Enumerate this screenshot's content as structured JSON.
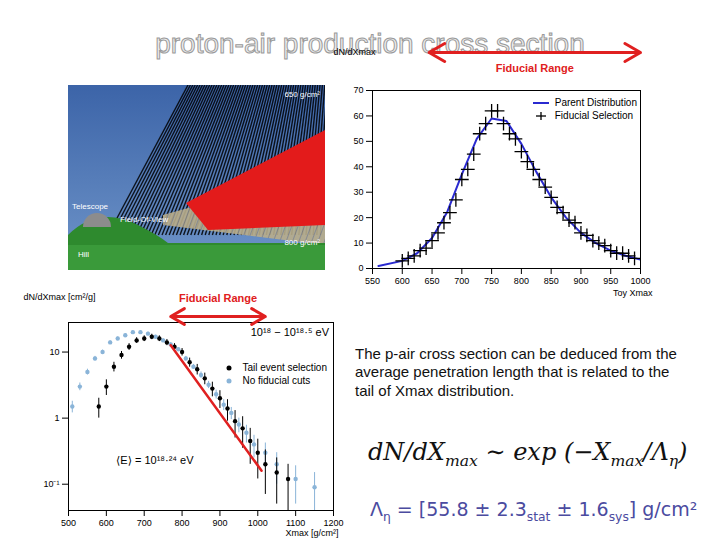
{
  "slide_title": "proton-air production cross section",
  "diagram": {
    "labels": {
      "telescope": "Telescope",
      "field_of_view": "Field-Of-View",
      "hill": "Hill",
      "top_depth": "650 g/cm²",
      "bottom_depth": "800 g/cm²"
    }
  },
  "chart_data": [
    {
      "type": "line",
      "xlabel": "Toy Xmax",
      "ylabel": "dN/dXmax",
      "xlim": [
        550,
        1000
      ],
      "xticks": [
        550,
        600,
        650,
        700,
        750,
        800,
        850,
        900,
        950,
        1000
      ],
      "ylim": [
        0,
        70
      ],
      "yticks": [
        0,
        10,
        20,
        30,
        40,
        50,
        60,
        70
      ],
      "grid": false,
      "legend": "top-right",
      "fiducial_range": {
        "text": "Fiducial Range",
        "x": [
          645,
          1000
        ],
        "color": "#e02020"
      },
      "series": [
        {
          "name": "Parent Distribution",
          "type": "line",
          "color": "#2a2ad0",
          "x": [
            560,
            600,
            625,
            650,
            675,
            700,
            725,
            750,
            775,
            800,
            825,
            850,
            875,
            900,
            925,
            950,
            975,
            1000
          ],
          "values": [
            1,
            3,
            6,
            12,
            22,
            37,
            51,
            59,
            58,
            49,
            38,
            28,
            20,
            14,
            10,
            7,
            5,
            3.5
          ]
        },
        {
          "name": "Fiducial Selection",
          "type": "scatter",
          "marker": "plus",
          "color": "#000000",
          "x": [
            600,
            610,
            620,
            630,
            640,
            650,
            660,
            670,
            680,
            690,
            700,
            710,
            720,
            730,
            740,
            750,
            760,
            770,
            780,
            790,
            800,
            810,
            820,
            830,
            840,
            850,
            860,
            870,
            880,
            890,
            900,
            910,
            920,
            930,
            940,
            950,
            960,
            970,
            980,
            990
          ],
          "values": [
            3,
            4,
            5,
            7,
            8,
            11,
            14,
            18,
            22,
            27,
            35,
            39,
            45,
            53,
            57,
            62,
            62,
            57,
            53,
            51,
            46,
            42,
            39,
            35,
            32,
            28,
            24,
            22,
            19,
            18,
            14,
            13,
            11,
            10,
            9,
            7,
            6,
            6,
            5,
            4
          ]
        }
      ]
    },
    {
      "type": "scatter",
      "xlabel": "Xmax [g/cm²]",
      "ylabel": "dN/dXmax [cm²/g]",
      "log": "y",
      "xlim": [
        500,
        1200
      ],
      "xticks": [
        500,
        600,
        700,
        800,
        900,
        1000,
        1100,
        1200
      ],
      "ylim": [
        0.04,
        28
      ],
      "yticks": [
        {
          "value": 0.1,
          "label": "10⁻¹"
        },
        1,
        10
      ],
      "grid": false,
      "legend": "top-right",
      "annotations": [
        "10¹⁸ − 10¹⁸·⁵ eV",
        "⟨E⟩ = 10¹⁸·²⁴ eV"
      ],
      "fiducial_range": {
        "text": "Fiducial Range",
        "x": [
          770,
          1020
        ],
        "color": "#e02020"
      },
      "fit": {
        "x": [
          770,
          1010
        ],
        "values": [
          12.7,
          0.16
        ],
        "color": "#e02020"
      },
      "series": [
        {
          "name": "No fiducial cuts",
          "marker": "circle",
          "color": "#8ab4d8",
          "x": [
            510,
            530,
            550,
            570,
            590,
            610,
            630,
            650,
            670,
            690,
            710,
            730,
            750,
            770,
            790,
            810,
            830,
            850,
            870,
            890,
            910,
            930,
            950,
            970,
            990,
            1020,
            1050,
            1100,
            1150
          ],
          "values": [
            1.5,
            3,
            5,
            8,
            10,
            14,
            16,
            18,
            20,
            20,
            19,
            17,
            15,
            13,
            11,
            8,
            6,
            4.5,
            3.2,
            2.3,
            1.6,
            1.2,
            0.8,
            0.6,
            0.4,
            0.3,
            0.2,
            0.12,
            0.09
          ],
          "errors": [
            0.3,
            0.4,
            0.5,
            0.6,
            0.7,
            0.8,
            0.9,
            0.9,
            1,
            1,
            1,
            0.9,
            0.9,
            0.8,
            0.7,
            0.6,
            0.5,
            0.5,
            0.4,
            0.35,
            0.3,
            0.25,
            0.2,
            0.18,
            0.15,
            0.12,
            0.1,
            0.07,
            0.06
          ]
        },
        {
          "name": "Tail event selection",
          "marker": "circle",
          "color": "#000000",
          "x": [
            580,
            600,
            620,
            640,
            660,
            680,
            700,
            720,
            740,
            760,
            780,
            800,
            820,
            840,
            860,
            880,
            900,
            920,
            940,
            960,
            980,
            1000,
            1020,
            1050,
            1080
          ],
          "values": [
            1.5,
            3,
            6,
            9,
            12,
            15,
            16,
            17,
            16,
            14,
            12,
            10,
            7,
            5.5,
            4,
            2.8,
            2,
            1.4,
            0.9,
            0.7,
            0.45,
            0.3,
            0.2,
            0.15,
            0.12
          ],
          "errors": [
            0.5,
            0.8,
            1,
            1.2,
            1.4,
            1.5,
            1.6,
            1.6,
            1.6,
            1.5,
            1.4,
            1.3,
            1.1,
            1,
            0.8,
            0.7,
            0.6,
            0.5,
            0.4,
            0.35,
            0.25,
            0.18,
            0.13,
            0.1,
            0.08
          ]
        }
      ]
    }
  ],
  "text": "The p-air cross section can be deduced from the average penetration length that is related to the tail of Xmax distribution.",
  "formula": [
    "dN/dX",
    {
      "sub": "max"
    },
    " ∼ exp (−X",
    {
      "sub": "max"
    },
    "/Λ",
    {
      "sub": "η"
    },
    ")"
  ],
  "result": [
    "Λ",
    {
      "sub": "η"
    },
    " = [55.8 ± 2.3",
    {
      "sub": "stat"
    },
    " ± 1.6",
    {
      "sub": "sys"
    },
    "] g/cm²"
  ]
}
